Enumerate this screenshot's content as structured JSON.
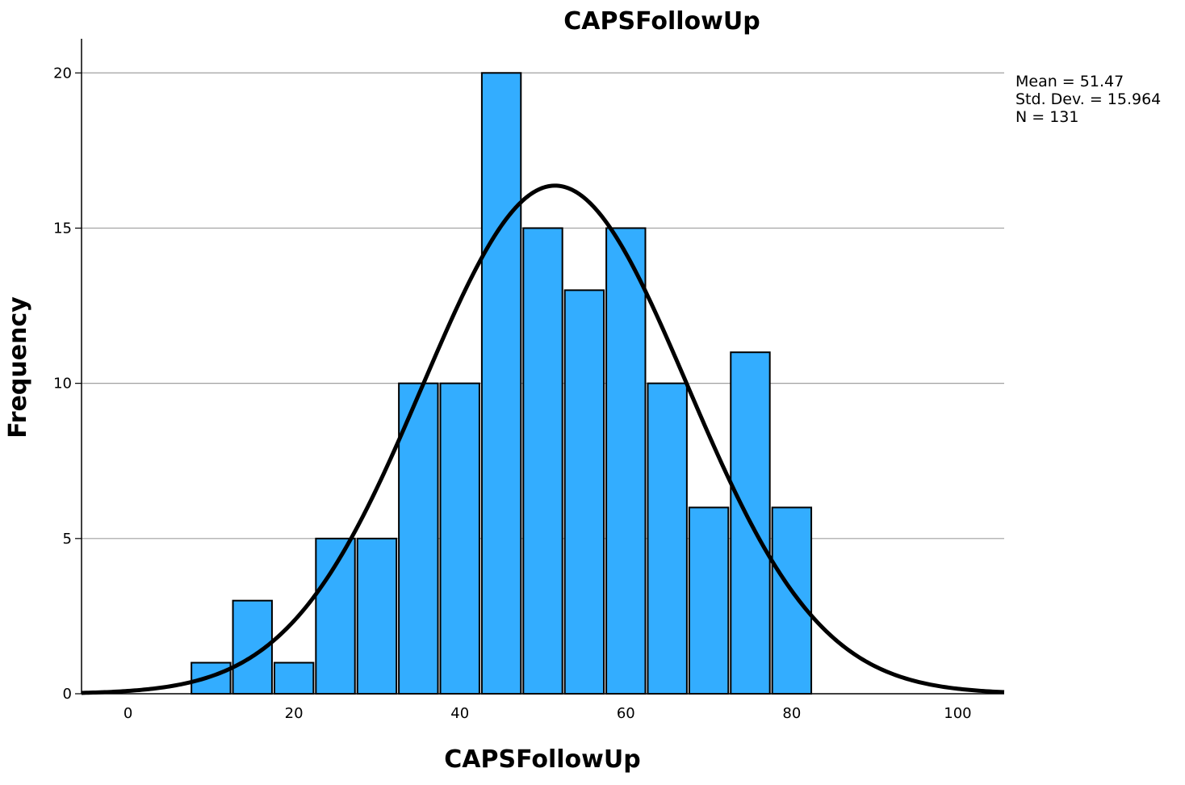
{
  "chart_data": {
    "type": "bar",
    "title": "CAPSFollowUp",
    "xlabel": "CAPSFollowUp",
    "ylabel": "Frequency",
    "xlim": [
      -5.6,
      105.6
    ],
    "ylim": [
      0,
      21.1
    ],
    "x_ticks": [
      0,
      20,
      40,
      60,
      80,
      100
    ],
    "y_ticks": [
      0,
      5,
      10,
      15,
      20
    ],
    "grid": "horizontal",
    "bar_color": "#33adff",
    "curve_color": "#000000",
    "bins": [
      {
        "start": 7.5,
        "end": 12.5,
        "value": 1
      },
      {
        "start": 12.5,
        "end": 17.5,
        "value": 3
      },
      {
        "start": 17.5,
        "end": 22.5,
        "value": 1
      },
      {
        "start": 22.5,
        "end": 27.5,
        "value": 5
      },
      {
        "start": 27.5,
        "end": 32.5,
        "value": 5
      },
      {
        "start": 32.5,
        "end": 37.5,
        "value": 10
      },
      {
        "start": 37.5,
        "end": 42.5,
        "value": 10
      },
      {
        "start": 42.5,
        "end": 47.5,
        "value": 20
      },
      {
        "start": 47.5,
        "end": 52.5,
        "value": 15
      },
      {
        "start": 52.5,
        "end": 57.5,
        "value": 13
      },
      {
        "start": 57.5,
        "end": 62.5,
        "value": 15
      },
      {
        "start": 62.5,
        "end": 67.5,
        "value": 10
      },
      {
        "start": 67.5,
        "end": 72.5,
        "value": 6
      },
      {
        "start": 72.5,
        "end": 77.5,
        "value": 11
      },
      {
        "start": 77.5,
        "end": 82.5,
        "value": 6
      }
    ],
    "normal_curve": {
      "mean": 51.47,
      "std": 15.964,
      "n": 131,
      "bin_width": 5
    },
    "stats": {
      "mean": "Mean = 51.47",
      "std": "Std. Dev. = 15.964",
      "n": "N = 131"
    }
  }
}
